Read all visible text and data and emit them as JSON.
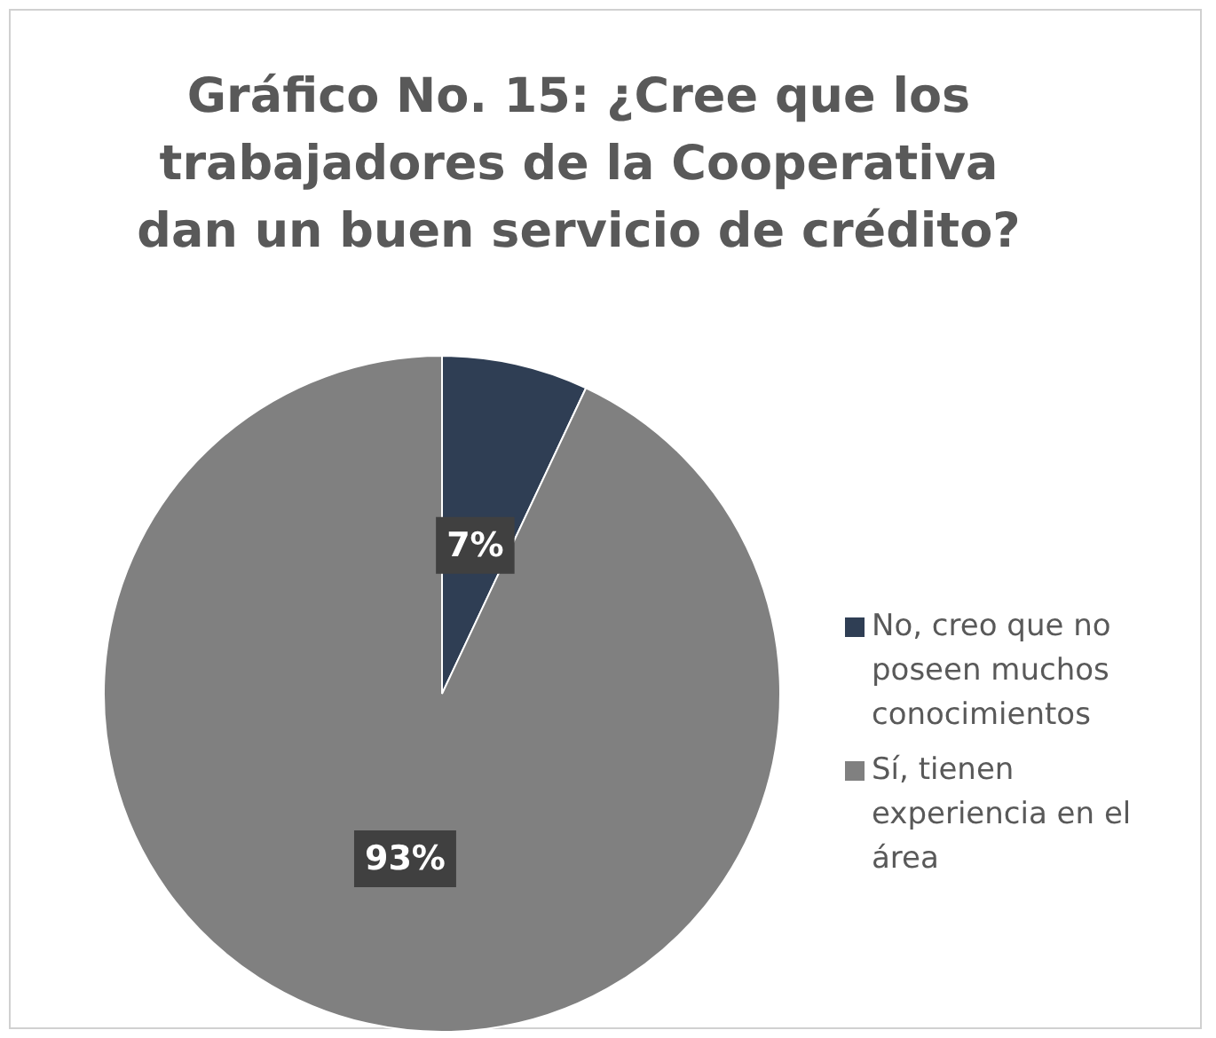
{
  "chart_data": {
    "type": "pie",
    "title": "Gráfico No. 15: ¿Cree que los trabajadores de la Cooperativa dan un buen servicio de crédito?",
    "categories": [
      "No, creo que no poseen muchos conocimientos",
      "Sí, tienen experiencia en el área"
    ],
    "values": [
      7,
      93
    ],
    "colors": [
      "#2f3e54",
      "#808080"
    ],
    "value_labels": [
      "7%",
      "93%"
    ],
    "legend": "right"
  }
}
